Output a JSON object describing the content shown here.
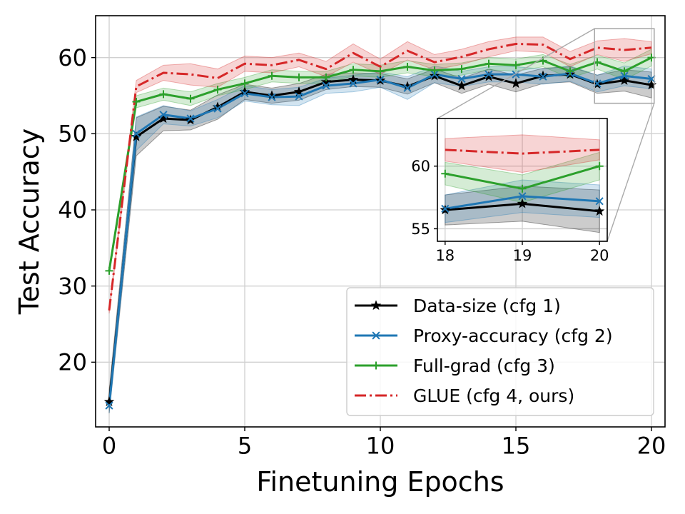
{
  "chart_data": {
    "type": "line",
    "xlabel": "Finetuning Epochs",
    "ylabel": "Test Accuracy",
    "xlim": [
      -0.5,
      20.5
    ],
    "ylim": [
      11.5,
      65.5
    ],
    "xticks": [
      0,
      5,
      10,
      15,
      20
    ],
    "xtick_labels": [
      "0",
      "5",
      "10",
      "15",
      "20"
    ],
    "yticks": [
      20,
      30,
      40,
      50,
      60
    ],
    "ytick_labels": [
      "20",
      "30",
      "40",
      "50",
      "60"
    ],
    "grid": true,
    "legend_position": "lower-right",
    "x": [
      0,
      1,
      2,
      3,
      4,
      5,
      6,
      7,
      8,
      9,
      10,
      11,
      12,
      13,
      14,
      15,
      16,
      17,
      18,
      19,
      20
    ],
    "series": [
      {
        "name": "Data-size (cfg 1)",
        "color": "#000000",
        "marker": "star",
        "linestyle": "solid",
        "values": [
          14.8,
          49.6,
          52.0,
          51.8,
          53.5,
          55.5,
          55.0,
          55.5,
          56.8,
          57.1,
          57.0,
          56.2,
          57.6,
          56.3,
          57.5,
          56.6,
          57.6,
          57.8,
          56.5,
          57.0,
          56.4
        ],
        "band": [
          1.5,
          2.5,
          1.6,
          1.3,
          1.6,
          1.0,
          1.0,
          1.1,
          1.0,
          0.9,
          0.9,
          1.0,
          0.9,
          1.0,
          1.0,
          1.1,
          1.0,
          1.0,
          1.2,
          1.4,
          1.7
        ]
      },
      {
        "name": "Proxy-accuracy (cfg 2)",
        "color": "#1f77b4",
        "marker": "x",
        "linestyle": "solid",
        "values": [
          14.3,
          50.0,
          52.5,
          52.0,
          53.3,
          55.3,
          54.8,
          54.9,
          56.3,
          56.6,
          57.1,
          56.0,
          57.8,
          57.2,
          57.8,
          57.8,
          57.5,
          57.9,
          56.6,
          57.6,
          57.2
        ],
        "band": [
          1.0,
          2.2,
          1.2,
          1.0,
          1.2,
          1.0,
          1.0,
          1.2,
          1.0,
          1.1,
          1.0,
          1.5,
          1.1,
          1.0,
          1.0,
          1.0,
          1.0,
          1.0,
          1.1,
          1.3,
          1.3
        ]
      },
      {
        "name": "Full-grad (cfg 3)",
        "color": "#2ca02c",
        "marker": "plus",
        "linestyle": "solid",
        "values": [
          32.0,
          54.2,
          55.2,
          54.6,
          55.8,
          56.6,
          57.6,
          57.4,
          57.4,
          58.4,
          58.2,
          58.8,
          58.3,
          58.5,
          59.2,
          59.0,
          59.6,
          58.2,
          59.4,
          58.2,
          60.0
        ],
        "band": [
          0.5,
          0.8,
          0.8,
          0.9,
          0.8,
          0.8,
          0.8,
          0.8,
          0.8,
          0.8,
          0.8,
          0.8,
          0.8,
          0.8,
          0.8,
          0.8,
          0.8,
          0.9,
          0.9,
          1.1,
          1.1
        ]
      },
      {
        "name": "GLUE (cfg 4, ours)",
        "color": "#d62728",
        "marker": "none",
        "linestyle": "dashdot",
        "values": [
          26.8,
          56.2,
          58.0,
          57.8,
          57.3,
          59.2,
          59.0,
          59.7,
          58.5,
          60.6,
          58.8,
          60.9,
          59.4,
          60.1,
          61.1,
          61.8,
          61.7,
          59.8,
          61.3,
          61.0,
          61.3
        ],
        "band": [
          0.4,
          0.8,
          1.0,
          1.4,
          1.2,
          1.0,
          1.0,
          0.9,
          1.0,
          1.2,
          1.0,
          1.2,
          1.0,
          1.0,
          1.0,
          0.9,
          1.0,
          1.0,
          0.9,
          1.5,
          0.8
        ]
      }
    ],
    "inset": {
      "xlim": [
        17.9,
        20.1
      ],
      "ylim": [
        54.0,
        63.8
      ],
      "xticks": [
        18,
        19,
        20
      ],
      "xtick_labels": [
        "18",
        "19",
        "20"
      ],
      "yticks": [
        55,
        60
      ],
      "ytick_labels": [
        "55",
        "60"
      ]
    }
  }
}
